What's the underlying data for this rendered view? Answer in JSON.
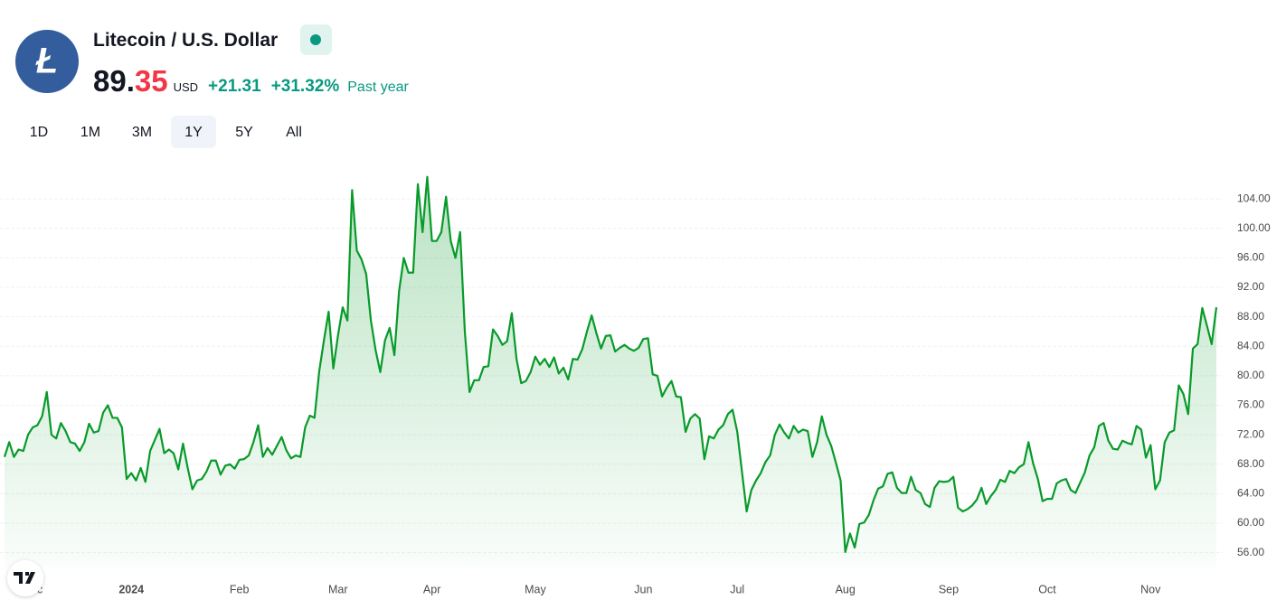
{
  "header": {
    "title": "Litecoin / U.S. Dollar",
    "logo_letter": "Ł",
    "price_main": "89.",
    "price_fraction": "35",
    "currency": "USD",
    "change": "+21.31",
    "change_percent": "+31.32%",
    "period": "Past year"
  },
  "ranges": {
    "options": [
      "1D",
      "1M",
      "3M",
      "1Y",
      "5Y",
      "All"
    ],
    "selected_index": 3
  },
  "chart_data": {
    "type": "line",
    "color": "#089a2a",
    "grid": true,
    "categories": [
      null,
      null,
      null,
      null,
      null,
      null,
      "Dec",
      null,
      null,
      null,
      null,
      null,
      null,
      null,
      null,
      null,
      null,
      null,
      null,
      null,
      null,
      null,
      null,
      null,
      null,
      null,
      null,
      "2024",
      null,
      null,
      null,
      null,
      null,
      null,
      null,
      null,
      null,
      null,
      null,
      null,
      null,
      null,
      null,
      null,
      null,
      null,
      null,
      null,
      null,
      null,
      "Feb",
      null,
      null,
      null,
      null,
      null,
      null,
      null,
      null,
      null,
      null,
      null,
      null,
      null,
      null,
      null,
      null,
      null,
      null,
      null,
      null,
      "Mar",
      null,
      null,
      null,
      null,
      null,
      null,
      null,
      null,
      null,
      null,
      null,
      null,
      null,
      null,
      null,
      null,
      null,
      null,
      null,
      "Apr",
      null,
      null,
      null,
      null,
      null,
      null,
      null,
      null,
      null,
      null,
      null,
      null,
      null,
      null,
      null,
      null,
      null,
      null,
      null,
      null,
      null,
      "May",
      null,
      null,
      null,
      null,
      null,
      null,
      null,
      null,
      null,
      null,
      null,
      null,
      null,
      null,
      null,
      null,
      null,
      null,
      null,
      null,
      null,
      null,
      "Jun",
      null,
      null,
      null,
      null,
      null,
      null,
      null,
      null,
      null,
      null,
      null,
      null,
      null,
      null,
      null,
      null,
      null,
      null,
      null,
      "Jul",
      null,
      null,
      null,
      null,
      null,
      null,
      null,
      null,
      null,
      null,
      null,
      null,
      null,
      null,
      null,
      null,
      null,
      null,
      null,
      null,
      null,
      null,
      "Aug",
      null,
      null,
      null,
      null,
      null,
      null,
      null,
      null,
      null,
      null,
      null,
      null,
      null,
      null,
      null,
      null,
      null,
      null,
      null,
      null,
      null,
      "Sep",
      null,
      null,
      null,
      null,
      null,
      null,
      null,
      null,
      null,
      null,
      null,
      null,
      null,
      null,
      null,
      null,
      null,
      null,
      null,
      null,
      "Oct",
      null,
      null,
      null,
      null,
      null,
      null,
      null,
      null,
      null,
      null,
      null,
      null,
      null,
      null,
      null,
      null,
      null,
      null,
      null,
      null,
      null,
      "Nov",
      null,
      null,
      null,
      null,
      null,
      null,
      null,
      null,
      null,
      null,
      null,
      null,
      null,
      null
    ],
    "values": [
      69,
      71,
      69,
      70,
      69.8,
      72,
      73,
      73.3,
      74.5,
      77.8,
      72,
      71.5,
      73.6,
      72.5,
      71,
      70.8,
      69.8,
      71,
      73.5,
      72.3,
      72.5,
      75,
      76,
      74.3,
      74.3,
      73,
      66,
      66.8,
      65.8,
      67.5,
      65.6,
      69.8,
      71.3,
      72.8,
      69.5,
      70,
      69.5,
      67.3,
      70.8,
      67.5,
      64.6,
      65.8,
      66,
      67,
      68.5,
      68.5,
      66.6,
      67.8,
      68,
      67.4,
      68.6,
      68.7,
      69.2,
      71,
      73.3,
      69,
      70.2,
      69.3,
      70.5,
      71.7,
      69.9,
      68.8,
      69.2,
      69,
      73,
      74.6,
      74.3,
      80.6,
      84.8,
      88.7,
      81,
      85.5,
      89.3,
      87.5,
      105.2,
      97,
      95.8,
      93.8,
      87.5,
      83.5,
      80.5,
      84.8,
      86.5,
      82.8,
      91.5,
      96,
      94,
      94,
      106,
      99.5,
      107,
      98.3,
      98.3,
      99.5,
      104.3,
      98.3,
      96,
      99.5,
      86,
      77.8,
      79.4,
      79.4,
      81.2,
      81.3,
      86.3,
      85.4,
      84.2,
      84.7,
      88.5,
      82.3,
      79,
      79.3,
      80.5,
      82.6,
      81.5,
      82.3,
      81.2,
      82.5,
      80.3,
      81.1,
      79.5,
      82.3,
      82.2,
      83.6,
      86,
      88.2,
      85.8,
      83.7,
      85.4,
      85.5,
      83.3,
      83.8,
      84.2,
      83.7,
      83.4,
      83.8,
      85,
      85.1,
      80.2,
      80,
      77.2,
      78.4,
      79.3,
      77.2,
      77.1,
      72.4,
      74.2,
      74.8,
      74.2,
      68.7,
      71.8,
      71.5,
      72.7,
      73.3,
      74.8,
      75.4,
      72.4,
      67,
      61.6,
      64.5,
      65.8,
      66.8,
      68.3,
      69.2,
      72,
      73.4,
      72.3,
      71.5,
      73.2,
      72.3,
      72.7,
      72.5,
      69,
      71,
      74.5,
      72,
      70.5,
      68.2,
      65.8,
      56.1,
      58.6,
      56.7,
      59.9,
      60.1,
      61.1,
      63.1,
      64.7,
      65,
      66.7,
      66.9,
      64.8,
      64.1,
      64.1,
      66.3,
      64.5,
      64.1,
      62.6,
      62.2,
      64.8,
      65.7,
      65.6,
      65.7,
      66.3,
      62.1,
      61.6,
      61.9,
      62.4,
      63.2,
      64.8,
      62.6,
      63.7,
      64.5,
      65.9,
      65.6,
      67.1,
      66.8,
      67.6,
      68,
      71,
      68.1,
      66,
      63,
      63.3,
      63.3,
      65.4,
      65.8,
      66,
      64.5,
      64.1,
      65.5,
      66.9,
      69.2,
      70.3,
      73.2,
      73.6,
      71.2,
      70.1,
      70,
      71.2,
      70.9,
      70.7,
      73.2,
      72.7,
      68.9,
      70.6,
      64.6,
      65.8,
      71,
      72.3,
      72.6,
      78.7,
      77.5,
      74.8,
      83.7,
      84.3,
      89.2,
      86.8,
      84.3,
      89.3
    ],
    "ylim": [
      54,
      107.7
    ],
    "yticks": [
      {
        "value": 56,
        "label": "56.00"
      },
      {
        "value": 60,
        "label": "60.00"
      },
      {
        "value": 64,
        "label": "64.00"
      },
      {
        "value": 68,
        "label": "68.00"
      },
      {
        "value": 72,
        "label": "72.00"
      },
      {
        "value": 76,
        "label": "76.00"
      },
      {
        "value": 80,
        "label": "80.00"
      },
      {
        "value": 84,
        "label": "84.00"
      },
      {
        "value": 88,
        "label": "88.00"
      },
      {
        "value": 92,
        "label": "92.00"
      },
      {
        "value": 96,
        "label": "96.00"
      },
      {
        "value": 100,
        "label": "100.00"
      },
      {
        "value": 104,
        "label": "104.00"
      }
    ]
  }
}
